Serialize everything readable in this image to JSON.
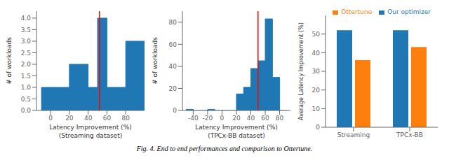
{
  "caption": "Fig. 4. End to end performances and comparison to Ottertune.",
  "chart_data": [
    {
      "type": "histogram",
      "xlabel": "Latency Improvement (%)\n(Streaming dataset)",
      "ylabel": "# of workloads",
      "bins": [
        -10,
        10,
        20,
        40,
        50,
        60,
        80,
        100
      ],
      "values": [
        1,
        1,
        2,
        1,
        4,
        1,
        3
      ],
      "color": "#1f77b4",
      "xlim": [
        -15,
        100
      ],
      "xticks": [
        0,
        20,
        40,
        60,
        80
      ],
      "ylim": [
        0,
        4.3
      ],
      "yticks": [
        {
          "value": 0,
          "label": "0.0"
        },
        0.5,
        {
          "value": 1,
          "label": "1.0"
        },
        1.5,
        {
          "value": 2,
          "label": "2.0"
        },
        2.5,
        {
          "value": 3,
          "label": "3.0"
        },
        3.5,
        {
          "value": 4,
          "label": "4.0"
        }
      ],
      "vline": {
        "x": 52,
        "color": "red"
      },
      "grid": false
    },
    {
      "type": "histogram",
      "xlabel": "Latency Improvement (%)\n(TPCx-BB dataset)",
      "ylabel": "# of workloads",
      "bins": [
        -50,
        -40,
        -30,
        -20,
        -10,
        0,
        10,
        20,
        30,
        40,
        50,
        60,
        70,
        80,
        90
      ],
      "values": [
        1,
        0,
        0,
        1,
        0,
        0,
        0,
        15,
        21,
        38,
        45,
        83,
        30,
        0
      ],
      "color": "#1f77b4",
      "xlim": [
        -55,
        95
      ],
      "xticks": [
        -40,
        -20,
        0,
        20,
        40,
        60,
        80
      ],
      "ylim": [
        0,
        90
      ],
      "yticks": [
        0,
        20,
        40,
        60,
        80
      ],
      "vline": {
        "x": 50,
        "color": "red"
      },
      "grid": false
    },
    {
      "type": "bar",
      "categories": [
        "Streaming",
        "TPCx-BB"
      ],
      "series": [
        {
          "name": "Our optimizer",
          "color": "#1f77b4",
          "values": [
            52,
            52
          ]
        },
        {
          "name": "Ottertune",
          "color": "#ff7f0e",
          "values": [
            36,
            43
          ]
        }
      ],
      "ylabel": "Average Latency Improvement (%)",
      "ylim": [
        0,
        60
      ],
      "yticks": [
        0,
        10,
        20,
        30,
        40,
        50
      ],
      "legend": "upper right",
      "grid": false
    }
  ]
}
